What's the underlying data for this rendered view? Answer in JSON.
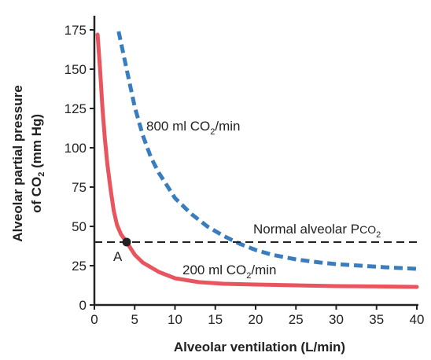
{
  "chart_data": {
    "type": "line",
    "xlabel": "Alveolar ventilation (L/min)",
    "ylabel_line1": "Alveolar partial pressure",
    "ylabel_line2_pre": "of CO",
    "ylabel_line2_sub": "2",
    "ylabel_line2_post": " (mm Hg)",
    "xlim": [
      0,
      40
    ],
    "ylim": [
      0,
      175
    ],
    "xticks": [
      0,
      5,
      10,
      15,
      20,
      25,
      30,
      35,
      40
    ],
    "yticks": [
      0,
      25,
      50,
      75,
      100,
      125,
      150,
      175
    ],
    "grid": false,
    "series": [
      {
        "name_pre": "200 ml CO",
        "name_sub": "2",
        "name_post": "/min",
        "color": "#e8555f",
        "style": "solid",
        "x": [
          0.4,
          0.7,
          1.0,
          1.3,
          1.6,
          2.0,
          2.4,
          2.8,
          3.3,
          4.0,
          5,
          6,
          8,
          10,
          13,
          16,
          20,
          25,
          30,
          35,
          40
        ],
        "y": [
          172,
          150,
          125,
          106,
          90,
          74,
          60,
          51,
          45,
          40,
          32,
          27,
          21,
          17,
          14.5,
          13.5,
          13,
          12.5,
          12,
          11.8,
          11.5
        ]
      },
      {
        "name_pre": "800 ml CO",
        "name_sub": "2",
        "name_post": "/min",
        "color": "#3a7dbf",
        "style": "dashed",
        "x": [
          3,
          4,
          5,
          6,
          7,
          8,
          9,
          10,
          12,
          14,
          16,
          18,
          20,
          22,
          25,
          28,
          30,
          33,
          36,
          40
        ],
        "y": [
          174,
          150,
          126,
          108,
          94,
          84,
          76,
          68,
          58,
          50,
          44,
          39,
          35,
          32,
          29,
          27,
          26,
          25,
          24,
          23
        ]
      }
    ],
    "reference_line": {
      "y": 40,
      "color": "#222222",
      "style": "dashed",
      "label_pre": "Normal alveolar P",
      "label_sub": "CO",
      "label_sub2": "2"
    },
    "point": {
      "label": "A",
      "x": 4,
      "y": 40,
      "color": "#222222"
    }
  }
}
